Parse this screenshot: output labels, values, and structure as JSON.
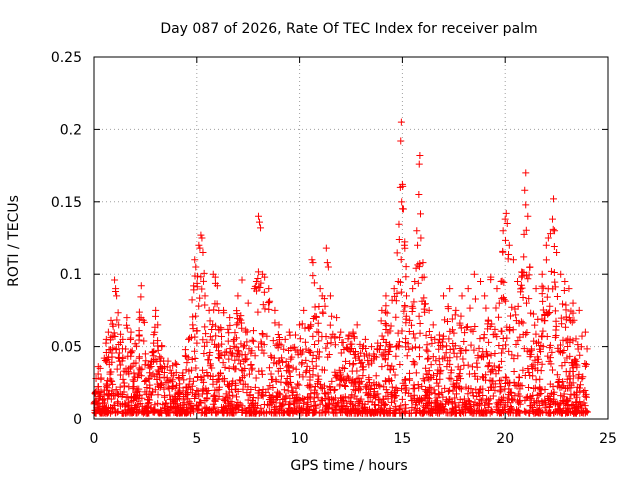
{
  "chart_data": {
    "type": "scatter",
    "title": "Day 087 of 2026, Rate Of TEC Index for receiver palm",
    "xlabel": "GPS time / hours",
    "ylabel": "ROTI / TECUs",
    "xlim": [
      0,
      25
    ],
    "ylim": [
      0,
      0.25
    ],
    "xticks": [
      0,
      5,
      10,
      15,
      20,
      25
    ],
    "yticks": [
      0,
      0.05,
      0.1,
      0.15,
      0.2,
      0.25
    ],
    "xtick_labels": [
      "0",
      "5",
      "10",
      "15",
      "20",
      "25"
    ],
    "ytick_labels": [
      "0",
      "0.05",
      "0.1",
      "0.15",
      "0.2",
      "0.25"
    ],
    "grid": true,
    "marker": "+",
    "color": "#ff0000",
    "x_data_range": [
      0,
      24
    ],
    "series": [
      {
        "name": "ROTI",
        "points": [
          [
            0.1,
            0.028
          ],
          [
            0.3,
            0.035
          ],
          [
            0.5,
            0.042
          ],
          [
            0.6,
            0.055
          ],
          [
            0.7,
            0.06
          ],
          [
            0.8,
            0.048
          ],
          [
            1.0,
            0.096
          ],
          [
            1.05,
            0.09
          ],
          [
            1.1,
            0.085
          ],
          [
            1.2,
            0.065
          ],
          [
            1.4,
            0.055
          ],
          [
            1.6,
            0.07
          ],
          [
            1.8,
            0.06
          ],
          [
            2.0,
            0.052
          ],
          [
            2.2,
            0.058
          ],
          [
            2.3,
            0.092
          ],
          [
            2.5,
            0.045
          ],
          [
            2.8,
            0.04
          ],
          [
            3.0,
            0.075
          ],
          [
            3.1,
            0.065
          ],
          [
            3.3,
            0.05
          ],
          [
            3.6,
            0.04
          ],
          [
            4.0,
            0.032
          ],
          [
            4.3,
            0.03
          ],
          [
            4.6,
            0.055
          ],
          [
            4.8,
            0.065
          ],
          [
            4.9,
            0.11
          ],
          [
            4.95,
            0.105
          ],
          [
            5.1,
            0.12
          ],
          [
            5.15,
            0.118
          ],
          [
            5.2,
            0.127
          ],
          [
            5.25,
            0.125
          ],
          [
            5.3,
            0.115
          ],
          [
            5.4,
            0.085
          ],
          [
            5.6,
            0.075
          ],
          [
            5.8,
            0.1
          ],
          [
            5.9,
            0.098
          ],
          [
            6.0,
            0.092
          ],
          [
            6.3,
            0.075
          ],
          [
            6.6,
            0.07
          ],
          [
            7.0,
            0.085
          ],
          [
            7.2,
            0.096
          ],
          [
            7.5,
            0.08
          ],
          [
            7.8,
            0.09
          ],
          [
            7.9,
            0.095
          ],
          [
            8.0,
            0.14
          ],
          [
            8.05,
            0.136
          ],
          [
            8.1,
            0.132
          ],
          [
            8.2,
            0.1
          ],
          [
            8.3,
            0.098
          ],
          [
            8.5,
            0.09
          ],
          [
            8.8,
            0.075
          ],
          [
            9.0,
            0.065
          ],
          [
            9.3,
            0.055
          ],
          [
            9.5,
            0.06
          ],
          [
            9.8,
            0.058
          ],
          [
            10.0,
            0.065
          ],
          [
            10.2,
            0.075
          ],
          [
            10.6,
            0.11
          ],
          [
            10.65,
            0.108
          ],
          [
            11.0,
            0.09
          ],
          [
            11.1,
            0.085
          ],
          [
            11.3,
            0.118
          ],
          [
            11.35,
            0.108
          ],
          [
            11.4,
            0.105
          ],
          [
            11.5,
            0.085
          ],
          [
            11.8,
            0.07
          ],
          [
            12.0,
            0.06
          ],
          [
            12.4,
            0.058
          ],
          [
            12.6,
            0.06
          ],
          [
            12.8,
            0.065
          ],
          [
            13.2,
            0.055
          ],
          [
            13.5,
            0.05
          ],
          [
            13.8,
            0.048
          ],
          [
            14.0,
            0.075
          ],
          [
            14.2,
            0.085
          ],
          [
            14.5,
            0.082
          ],
          [
            14.6,
            0.09
          ],
          [
            14.8,
            0.095
          ],
          [
            14.85,
            0.124
          ],
          [
            14.9,
            0.16
          ],
          [
            14.92,
            0.192
          ],
          [
            14.95,
            0.205
          ],
          [
            15.0,
            0.162
          ],
          [
            15.05,
            0.145
          ],
          [
            15.1,
            0.12
          ],
          [
            15.2,
            0.085
          ],
          [
            15.5,
            0.09
          ],
          [
            15.6,
            0.095
          ],
          [
            15.7,
            0.13
          ],
          [
            15.8,
            0.155
          ],
          [
            15.82,
            0.176
          ],
          [
            15.85,
            0.182
          ],
          [
            15.9,
            0.125
          ],
          [
            16.0,
            0.108
          ],
          [
            16.3,
            0.075
          ],
          [
            16.5,
            0.065
          ],
          [
            16.8,
            0.058
          ],
          [
            17.0,
            0.085
          ],
          [
            17.3,
            0.09
          ],
          [
            17.6,
            0.075
          ],
          [
            17.9,
            0.085
          ],
          [
            18.2,
            0.09
          ],
          [
            18.5,
            0.1
          ],
          [
            18.8,
            0.095
          ],
          [
            19.0,
            0.085
          ],
          [
            19.3,
            0.098
          ],
          [
            19.6,
            0.09
          ],
          [
            19.8,
            0.095
          ],
          [
            19.9,
            0.13
          ],
          [
            20.0,
            0.138
          ],
          [
            20.05,
            0.142
          ],
          [
            20.1,
            0.135
          ],
          [
            20.2,
            0.12
          ],
          [
            20.4,
            0.11
          ],
          [
            20.6,
            0.095
          ],
          [
            20.8,
            0.098
          ],
          [
            20.9,
            0.112
          ],
          [
            20.95,
            0.158
          ],
          [
            21.0,
            0.17
          ],
          [
            21.1,
            0.14
          ],
          [
            21.2,
            0.105
          ],
          [
            21.5,
            0.09
          ],
          [
            21.8,
            0.1
          ],
          [
            22.0,
            0.12
          ],
          [
            22.1,
            0.125
          ],
          [
            22.2,
            0.128
          ],
          [
            22.3,
            0.138
          ],
          [
            22.35,
            0.152
          ],
          [
            22.4,
            0.13
          ],
          [
            22.5,
            0.115
          ],
          [
            22.7,
            0.1
          ],
          [
            22.9,
            0.095
          ],
          [
            23.1,
            0.09
          ],
          [
            23.3,
            0.08
          ],
          [
            23.6,
            0.075
          ],
          [
            23.9,
            0.06
          ]
        ]
      }
    ],
    "dense_floor_note": "Dense cloud of points between ROTI 0.005 and ~0.04 across 0-24 h"
  }
}
